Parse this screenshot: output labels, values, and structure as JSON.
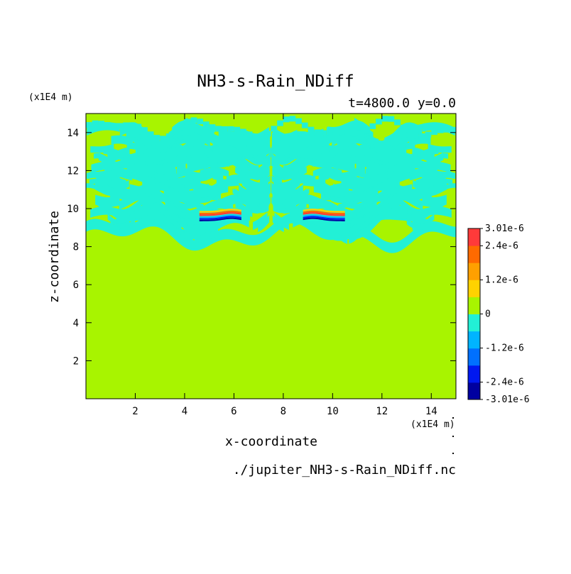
{
  "chart_data": {
    "type": "heatmap",
    "title": "NH3-s-Rain_NDiff",
    "subtitle": "t=4800.0 y=0.0",
    "xlabel": "x-coordinate",
    "ylabel": "z-coordinate",
    "x_unit": "(x1E4 m)",
    "y_unit": "(x1E4 m)",
    "xlim": [
      0,
      15
    ],
    "ylim": [
      0,
      15
    ],
    "x_ticks": [
      2,
      4,
      6,
      8,
      10,
      12,
      14
    ],
    "y_ticks": [
      2,
      4,
      6,
      8,
      10,
      12,
      14
    ],
    "source_file": "./jupiter_NH3-s-Rain_NDiff.nc",
    "colorbar": {
      "levels": [
        {
          "from": -3.01e-06,
          "to": -2.4e-06,
          "color": "#0000a0"
        },
        {
          "from": -2.4e-06,
          "to": -1.8e-06,
          "color": "#0018f0"
        },
        {
          "from": -1.8e-06,
          "to": -1.2e-06,
          "color": "#0070ff"
        },
        {
          "from": -1.2e-06,
          "to": -6e-07,
          "color": "#00b4ff"
        },
        {
          "from": -6e-07,
          "to": 0,
          "color": "#22f0d6"
        },
        {
          "from": 0,
          "to": 6e-07,
          "color": "#a8f400"
        },
        {
          "from": 6e-07,
          "to": 1.2e-06,
          "color": "#ffd200"
        },
        {
          "from": 1.2e-06,
          "to": 1.8e-06,
          "color": "#ffa000"
        },
        {
          "from": 1.8e-06,
          "to": 2.4e-06,
          "color": "#ff6a00"
        },
        {
          "from": 2.4e-06,
          "to": 3.01e-06,
          "color": "#ff3a3a"
        }
      ],
      "tick_labels": [
        "3.01e-6",
        "2.4e-6",
        "1.2e-6",
        "0",
        "-1.2e-6",
        "-2.4e-6",
        "-3.01e-6"
      ]
    },
    "field_description": "Zero (green) below z≈8.5 everywhere; above, irregular alternating bands of slight negative (cyan) and zero values up to z≈14.5; strong thin positive/negative dipole bands near z≈9.5–9.8 at x≈4.6–6.3 and x≈8.8–10.5",
    "colors": {
      "background_zero": "#a8f400",
      "negative_band": "#22f0d6"
    }
  }
}
